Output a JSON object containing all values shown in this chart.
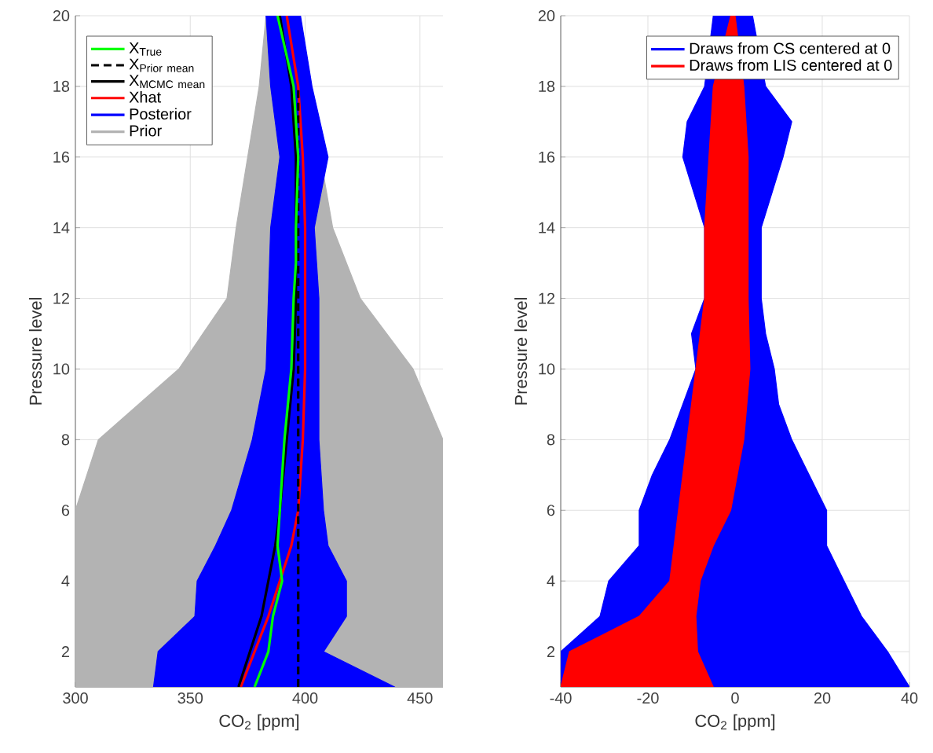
{
  "chart_data": [
    {
      "type": "line",
      "xlabel": "CO$_{2}$ [ppm]",
      "ylabel": "Pressure level",
      "xlim": [
        300,
        460
      ],
      "ylim": [
        1,
        20
      ],
      "xticks": [
        300,
        350,
        400,
        450
      ],
      "yticks": [
        2,
        4,
        6,
        8,
        10,
        12,
        14,
        16,
        18,
        20
      ],
      "grid": true,
      "legend": "top left",
      "series": [
        {
          "name": "\\mathrm{X}_{\\mathrm{True}}",
          "color": "#00ff00",
          "x": [
            378,
            384,
            386,
            390,
            388,
            389,
            391,
            394,
            395,
            396,
            396,
            397,
            395,
            388
          ],
          "values": [
            1,
            2,
            3,
            4,
            5,
            6,
            8,
            10,
            12,
            13,
            14,
            16,
            18,
            20
          ]
        },
        {
          "name": "\\mathrm{X}_{\\mathrm{Prior\\ mean}}",
          "color": "#000000",
          "line_style": "dashed",
          "x": [
            397,
            397,
            397,
            397,
            397,
            397,
            397,
            397
          ],
          "values": [
            1,
            4,
            8,
            10,
            12,
            14,
            16,
            18
          ]
        },
        {
          "name": "\\mathrm{X}_{\\mathrm{MCMC\\ mean}}",
          "color": "#000000",
          "x": [
            371,
            376,
            381,
            384,
            387,
            389,
            392,
            395,
            396,
            396,
            396,
            394,
            389
          ],
          "values": [
            1,
            2,
            3,
            4,
            5,
            6,
            8,
            10,
            12,
            14,
            16,
            18,
            20
          ]
        },
        {
          "name": "Xhat",
          "color": "#ff0000",
          "x": [
            372,
            378,
            384,
            389,
            394,
            397,
            399,
            400,
            400,
            400,
            399,
            397,
            392
          ],
          "values": [
            1,
            2,
            3,
            4,
            5,
            6,
            8,
            10,
            12,
            14,
            16,
            18,
            20
          ]
        },
        {
          "name": "Posterior",
          "color": "#0000ff",
          "type": "area",
          "x": [
            334,
            336,
            352,
            353,
            361,
            368,
            377,
            383,
            384,
            385,
            389,
            385,
            383,
            398,
            403,
            410,
            404,
            406,
            406,
            408,
            410,
            418,
            418,
            408,
            439
          ],
          "values": [
            1,
            2,
            3,
            4,
            5,
            6,
            8,
            10,
            12,
            14,
            16,
            18,
            20,
            20,
            18,
            16,
            14,
            12,
            8,
            6,
            5,
            4,
            3,
            2,
            1
          ]
        },
        {
          "name": "Prior",
          "color": "#b3b3b3",
          "type": "area",
          "x": [
            300,
            300,
            300,
            300,
            310,
            345,
            366,
            370,
            375,
            380,
            383,
            396,
            412,
            424,
            447,
            460,
            460,
            460,
            460,
            460
          ],
          "values": [
            1,
            2,
            4,
            6,
            8,
            10,
            12,
            14,
            16,
            18,
            20,
            20,
            14,
            12,
            10,
            8,
            6,
            4,
            2,
            1
          ]
        }
      ]
    },
    {
      "type": "line",
      "xlabel": "CO$_{2}$ [ppm]",
      "ylabel": "Pressure level",
      "xlim": [
        -40,
        40
      ],
      "ylim": [
        1,
        20
      ],
      "xticks": [
        -40,
        -20,
        0,
        20,
        40
      ],
      "yticks": [
        2,
        4,
        6,
        8,
        10,
        12,
        14,
        16,
        18,
        20
      ],
      "grid": true,
      "legend": "top right",
      "series": [
        {
          "name": "Draws from CS centered at 0",
          "color": "#0000ff",
          "type": "area",
          "x": [
            -40,
            -40,
            -31,
            -29,
            -22,
            -22,
            -19,
            -15,
            -12,
            -9,
            -10,
            -7,
            -7,
            -12,
            -11,
            -7,
            -5,
            4,
            7,
            13,
            11,
            6,
            6,
            7,
            9,
            10,
            13,
            17,
            21,
            21,
            25,
            29,
            35,
            40
          ],
          "values": [
            1,
            2,
            3,
            4,
            5,
            6,
            7,
            8,
            9,
            10,
            11,
            12,
            14,
            16,
            17,
            18,
            20,
            20,
            18,
            17,
            16,
            14,
            12,
            11,
            10,
            9,
            8,
            7,
            6,
            5,
            4,
            3,
            2,
            1
          ]
        },
        {
          "name": "Draws from LIS centered at 0",
          "color": "#ff0000",
          "type": "area",
          "x": [
            -40,
            -38,
            -22,
            -15,
            -14,
            -13,
            -11,
            -9,
            -7,
            -7,
            -6,
            -5,
            -1,
            0,
            2,
            3,
            3,
            3.4,
            2,
            -1,
            -5,
            -8,
            -9,
            -8.6,
            -5
          ],
          "values": [
            1,
            2,
            3,
            4,
            5,
            6,
            8,
            10,
            12,
            14,
            16,
            18,
            20,
            20,
            18,
            16,
            12,
            10,
            8,
            6,
            5,
            4,
            3,
            2,
            1
          ]
        }
      ]
    }
  ]
}
